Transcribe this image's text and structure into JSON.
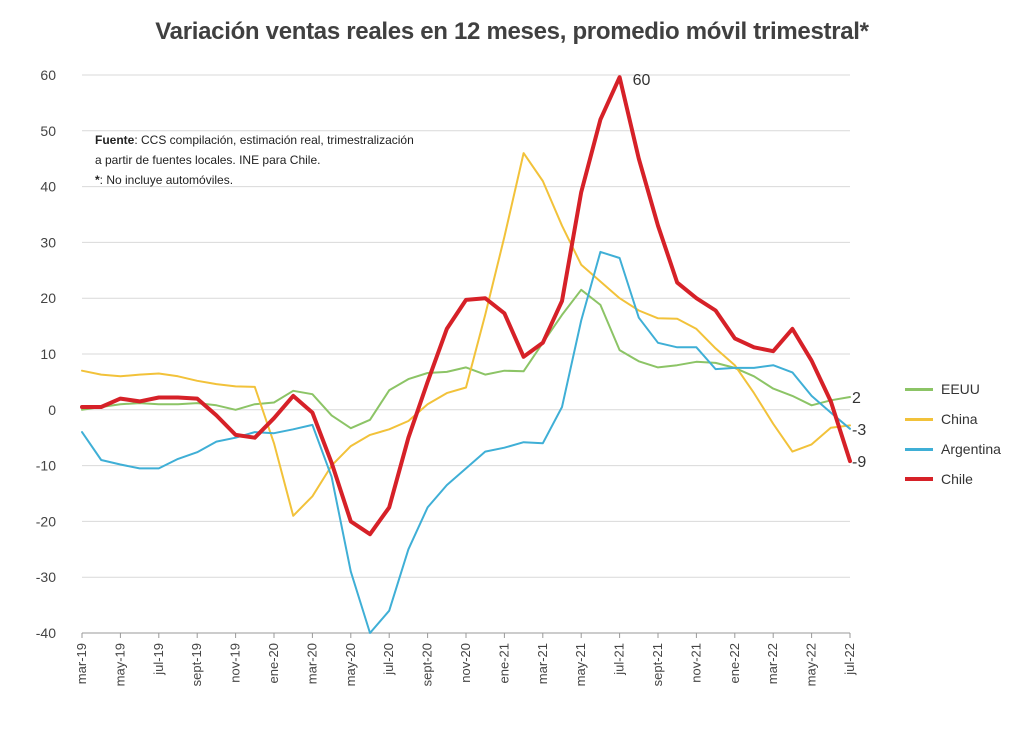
{
  "chart_data": {
    "type": "line",
    "title": "Variación ventas reales en 12 meses, promedio móvil trimestral*",
    "note": {
      "bold_label": "Fuente",
      "line1": ": CCS compilación, estimación real, trimestralización",
      "line2": "a partir de fuentes locales. INE para Chile.",
      "line3_star": "*",
      "line3": ": No incluye automóviles."
    },
    "ylim": [
      -40,
      60
    ],
    "yticks": [
      60,
      50,
      40,
      30,
      20,
      10,
      0,
      -10,
      -20,
      -30,
      -40
    ],
    "grid": true,
    "legend_position": "right",
    "x": [
      "mar-19",
      "abr-19",
      "may-19",
      "jun-19",
      "jul-19",
      "ago-19",
      "sept-19",
      "oct-19",
      "nov-19",
      "dic-19",
      "ene-20",
      "feb-20",
      "mar-20",
      "abr-20",
      "may-20",
      "jun-20",
      "jul-20",
      "ago-20",
      "sept-20",
      "oct-20",
      "nov-20",
      "dic-20",
      "ene-21",
      "feb-21",
      "mar-21",
      "abr-21",
      "may-21",
      "jun-21",
      "jul-21",
      "ago-21",
      "sept-21",
      "oct-21",
      "nov-21",
      "dic-21",
      "ene-22",
      "feb-22",
      "mar-22",
      "abr-22",
      "may-22",
      "jun-22",
      "jul-22"
    ],
    "xtick_labels": [
      "mar-19",
      "may-19",
      "jul-19",
      "sept-19",
      "nov-19",
      "ene-20",
      "mar-20",
      "may-20",
      "jul-20",
      "sept-20",
      "nov-20",
      "ene-21",
      "mar-21",
      "may-21",
      "jul-21",
      "sept-21",
      "nov-21",
      "ene-22",
      "mar-22",
      "may-22",
      "jul-22"
    ],
    "series": [
      {
        "name": "EEUU",
        "color": "#8cc466",
        "width": 2,
        "values": [
          0,
          0.5,
          1,
          1.2,
          1,
          1,
          1.2,
          0.8,
          0,
          1,
          1.3,
          3.4,
          2.8,
          -1,
          -3.3,
          -1.8,
          3.5,
          5.5,
          6.6,
          6.8,
          7.6,
          6.3,
          7,
          6.9,
          12,
          17,
          21.5,
          18.8,
          10.7,
          8.7,
          7.6,
          8,
          8.6,
          8.4,
          7.5,
          6,
          3.8,
          2.5,
          0.8,
          1.7,
          2.3
        ]
      },
      {
        "name": "China",
        "color": "#f2c23a",
        "width": 2,
        "values": [
          7,
          6.3,
          6,
          6.3,
          6.5,
          6,
          5.2,
          4.6,
          4.2,
          4.1,
          -6,
          -19,
          -15.5,
          -10,
          -6.5,
          -4.5,
          -3.5,
          -2,
          1,
          3,
          4,
          17,
          31,
          46,
          41,
          33,
          26,
          23,
          20,
          17.8,
          16.4,
          16.3,
          14.5,
          11,
          8,
          3,
          -2.5,
          -7.5,
          -6.2,
          -3.2,
          -2.8
        ]
      },
      {
        "name": "Argentina",
        "color": "#3fafd6",
        "width": 2,
        "values": [
          -4,
          -9,
          -9.8,
          -10.5,
          -10.5,
          -8.8,
          -7.6,
          -5.7,
          -5,
          -4,
          -4.2,
          -3.5,
          -2.7,
          -12,
          -29,
          -40,
          -36,
          -25,
          -17.5,
          -13.5,
          -10.5,
          -7.5,
          -6.8,
          -5.8,
          -6,
          0.5,
          16,
          28.3,
          27.2,
          16.5,
          12,
          11.2,
          11.2,
          7.3,
          7.5,
          7.5,
          8,
          6.7,
          2.5,
          -0.5,
          -3.4
        ]
      },
      {
        "name": "Chile",
        "color": "#d62128",
        "width": 4,
        "values": [
          0.5,
          0.5,
          2,
          1.5,
          2.2,
          2.2,
          2,
          -1,
          -4.5,
          -5,
          -1.5,
          2.5,
          -0.5,
          -9.5,
          -20,
          -22.3,
          -17.5,
          -5,
          5,
          14.5,
          19.7,
          20,
          17.3,
          9.5,
          12,
          19.5,
          39,
          52,
          59.6,
          45,
          33,
          22.8,
          20,
          17.8,
          12.8,
          11.2,
          10.5,
          14.5,
          8.8,
          1.5,
          -9.2
        ]
      }
    ],
    "end_labels": {
      "EEUU": "2",
      "Argentina": "-3",
      "Chile": "-9"
    },
    "peak_label": {
      "series": "Chile",
      "index": 28,
      "text": "60"
    }
  }
}
